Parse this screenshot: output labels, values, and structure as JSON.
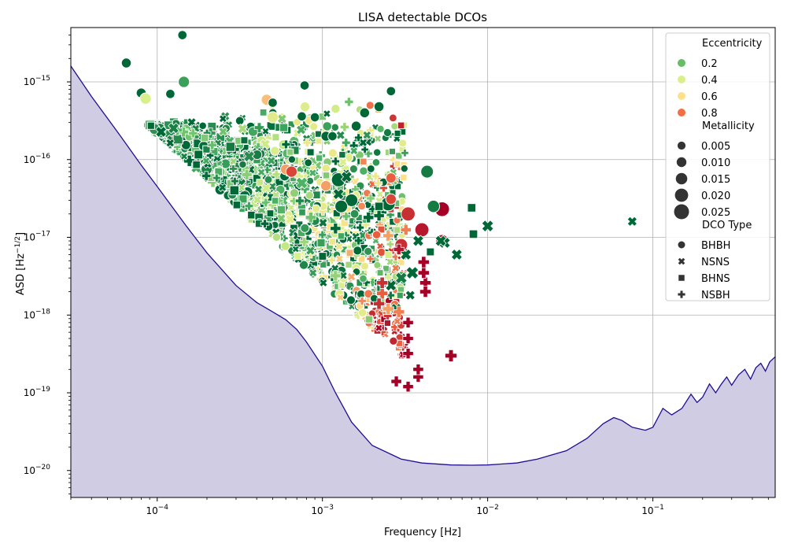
{
  "chart_data": {
    "type": "scatter",
    "title": "LISA detectable DCOs",
    "xlabel": "Frequency [Hz]",
    "ylabel_main": "ASD [Hz",
    "ylabel_exp": "−1/2",
    "ylabel_close": "]",
    "x_scale": "log",
    "y_scale": "log",
    "xlim": [
      3e-05,
      0.55
    ],
    "ylim": [
      4.5e-21,
      5e-15
    ],
    "grid": true,
    "legend_position": "top-right",
    "x_ticks": [
      {
        "value": 0.0001,
        "base": "10",
        "exp": "−4"
      },
      {
        "value": 0.001,
        "base": "10",
        "exp": "−3"
      },
      {
        "value": 0.01,
        "base": "10",
        "exp": "−2"
      },
      {
        "value": 0.1,
        "base": "10",
        "exp": "−1"
      }
    ],
    "y_ticks": [
      {
        "value": 1e-15,
        "base": "10",
        "exp": "−15"
      },
      {
        "value": 1e-16,
        "base": "10",
        "exp": "−16"
      },
      {
        "value": 1e-17,
        "base": "10",
        "exp": "−17"
      },
      {
        "value": 1e-18,
        "base": "10",
        "exp": "−18"
      },
      {
        "value": 1e-19,
        "base": "10",
        "exp": "−19"
      },
      {
        "value": 1e-20,
        "base": "10",
        "exp": "−20"
      }
    ],
    "sensitivity_curve": {
      "line_color": "#1f0f8f",
      "fill_color": "#cfcce3",
      "points": [
        [
          3e-05,
          1.6e-15
        ],
        [
          4e-05,
          6.5e-16
        ],
        [
          5e-05,
          3.4e-16
        ],
        [
          6e-05,
          2e-16
        ],
        [
          8e-05,
          8.5e-17
        ],
        [
          0.0001,
          4.5e-17
        ],
        [
          0.00015,
          1.4e-17
        ],
        [
          0.0002,
          6.3e-18
        ],
        [
          0.0003,
          2.4e-18
        ],
        [
          0.0004,
          1.45e-18
        ],
        [
          0.0005,
          1.1e-18
        ],
        [
          0.0006,
          8.7e-19
        ],
        [
          0.0007,
          6.5e-19
        ],
        [
          0.0008,
          4.5e-19
        ],
        [
          0.001,
          2.2e-19
        ],
        [
          0.0012,
          1e-19
        ],
        [
          0.0015,
          4.2e-20
        ],
        [
          0.002,
          2.1e-20
        ],
        [
          0.003,
          1.4e-20
        ],
        [
          0.004,
          1.25e-20
        ],
        [
          0.006,
          1.18e-20
        ],
        [
          0.008,
          1.17e-20
        ],
        [
          0.01,
          1.18e-20
        ],
        [
          0.015,
          1.25e-20
        ],
        [
          0.02,
          1.4e-20
        ],
        [
          0.03,
          1.8e-20
        ],
        [
          0.04,
          2.6e-20
        ],
        [
          0.05,
          4e-20
        ],
        [
          0.058,
          4.8e-20
        ],
        [
          0.065,
          4.4e-20
        ],
        [
          0.075,
          3.6e-20
        ],
        [
          0.09,
          3.3e-20
        ],
        [
          0.1,
          3.6e-20
        ],
        [
          0.115,
          6.3e-20
        ],
        [
          0.13,
          5.2e-20
        ],
        [
          0.15,
          6.3e-20
        ],
        [
          0.17,
          9.6e-20
        ],
        [
          0.185,
          7.5e-20
        ],
        [
          0.2,
          8.8e-20
        ],
        [
          0.22,
          1.3e-19
        ],
        [
          0.24,
          1e-19
        ],
        [
          0.26,
          1.3e-19
        ],
        [
          0.28,
          1.6e-19
        ],
        [
          0.3,
          1.25e-19
        ],
        [
          0.33,
          1.7e-19
        ],
        [
          0.36,
          2e-19
        ],
        [
          0.39,
          1.5e-19
        ],
        [
          0.42,
          2.1e-19
        ],
        [
          0.45,
          2.4e-19
        ],
        [
          0.48,
          1.9e-19
        ],
        [
          0.51,
          2.5e-19
        ],
        [
          0.55,
          2.9e-19
        ]
      ]
    },
    "eccentricity_palette": [
      {
        "stop": 0.0,
        "color": "#006837"
      },
      {
        "stop": 0.2,
        "color": "#4eb265"
      },
      {
        "stop": 0.4,
        "color": "#d9ef8b"
      },
      {
        "stop": 0.6,
        "color": "#fee08b"
      },
      {
        "stop": 0.8,
        "color": "#ea5d3e"
      },
      {
        "stop": 1.0,
        "color": "#a50026"
      }
    ],
    "legend": {
      "eccentricity_title": "Eccentricity",
      "eccentricity_items": [
        {
          "label": "0.2",
          "color": "#66bd63"
        },
        {
          "label": "0.4",
          "color": "#d9ef8b"
        },
        {
          "label": "0.6",
          "color": "#fee08b"
        },
        {
          "label": "0.8",
          "color": "#f46d43"
        }
      ],
      "metallicity_title": "Metallicity",
      "metallicity_items": [
        {
          "label": "0.005",
          "z": 0.005
        },
        {
          "label": "0.010",
          "z": 0.01
        },
        {
          "label": "0.015",
          "z": 0.015
        },
        {
          "label": "0.020",
          "z": 0.02
        },
        {
          "label": "0.025",
          "z": 0.025
        }
      ],
      "type_title": "DCO Type",
      "type_items": [
        {
          "label": "BHBH",
          "marker": "circle"
        },
        {
          "label": "NSNS",
          "marker": "x"
        },
        {
          "label": "BHNS",
          "marker": "square"
        },
        {
          "label": "NSBH",
          "marker": "plus"
        }
      ]
    },
    "points": [
      {
        "f": 0.000142,
        "asd": 4e-15,
        "ecc": 0.0,
        "z": 0.006,
        "type": "BHBH"
      },
      {
        "f": 6.5e-05,
        "asd": 1.75e-15,
        "ecc": 0.0,
        "z": 0.008,
        "type": "BHBH"
      },
      {
        "f": 0.000145,
        "asd": 1e-15,
        "ecc": 0.15,
        "z": 0.012,
        "type": "BHBH"
      },
      {
        "f": 0.00078,
        "asd": 9e-16,
        "ecc": 0.0,
        "z": 0.006,
        "type": "BHBH"
      },
      {
        "f": 8e-05,
        "asd": 7.2e-16,
        "ecc": 0.0,
        "z": 0.008,
        "type": "BHBH"
      },
      {
        "f": 8.5e-05,
        "asd": 6.1e-16,
        "ecc": 0.4,
        "z": 0.012,
        "type": "BHBH"
      },
      {
        "f": 0.00012,
        "asd": 7e-16,
        "ecc": 0.0,
        "z": 0.006,
        "type": "BHBH"
      },
      {
        "f": 0.0026,
        "asd": 7.6e-16,
        "ecc": 0.0,
        "z": 0.006,
        "type": "BHBH"
      },
      {
        "f": 0.00046,
        "asd": 5.9e-16,
        "ecc": 0.65,
        "z": 0.011,
        "type": "BHBH"
      },
      {
        "f": 0.0005,
        "asd": 5.4e-16,
        "ecc": 0.0,
        "z": 0.006,
        "type": "BHBH"
      },
      {
        "f": 0.0022,
        "asd": 4.8e-16,
        "ecc": 0.0,
        "z": 0.008,
        "type": "BHBH"
      },
      {
        "f": 0.0018,
        "asd": 4e-16,
        "ecc": 0.0,
        "z": 0.008,
        "type": "BHBH"
      },
      {
        "f": 0.0016,
        "asd": 2.7e-16,
        "ecc": 0.0,
        "z": 0.008,
        "type": "BHBH"
      },
      {
        "f": 0.00105,
        "asd": 2e-16,
        "ecc": 0.0,
        "z": 0.008,
        "type": "BHBH"
      },
      {
        "f": 0.00115,
        "asd": 2e-16,
        "ecc": 0.0,
        "z": 0.006,
        "type": "BHBH"
      },
      {
        "f": 0.0005,
        "asd": 3.5e-16,
        "ecc": 0.45,
        "z": 0.012,
        "type": "BHBH"
      },
      {
        "f": 0.0009,
        "asd": 3.5e-16,
        "ecc": 0.0,
        "z": 0.006,
        "type": "BHBH"
      },
      {
        "f": 0.00075,
        "asd": 3.6e-16,
        "ecc": 0.0,
        "z": 0.006,
        "type": "BHBH"
      },
      {
        "f": 0.0043,
        "asd": 7e-17,
        "ecc": 0.05,
        "z": 0.016,
        "type": "BHBH"
      },
      {
        "f": 0.0026,
        "asd": 5.8e-17,
        "ecc": 0.8,
        "z": 0.009,
        "type": "BHBH"
      },
      {
        "f": 0.0025,
        "asd": 2.7e-17,
        "ecc": 0.0,
        "z": 0.02,
        "type": "BHBH"
      },
      {
        "f": 0.0033,
        "asd": 2e-17,
        "ecc": 0.9,
        "z": 0.02,
        "type": "BHBH"
      },
      {
        "f": 0.0053,
        "asd": 2.3e-17,
        "ecc": 1.0,
        "z": 0.022,
        "type": "BHBH"
      },
      {
        "f": 0.0047,
        "asd": 2.5e-17,
        "ecc": 0.05,
        "z": 0.015,
        "type": "BHBH"
      },
      {
        "f": 0.004,
        "asd": 1.25e-17,
        "ecc": 0.95,
        "z": 0.02,
        "type": "BHBH"
      },
      {
        "f": 0.0026,
        "asd": 3.1e-17,
        "ecc": 0.85,
        "z": 0.01,
        "type": "BHBH"
      },
      {
        "f": 0.003,
        "asd": 8e-18,
        "ecc": 0.9,
        "z": 0.016,
        "type": "BHBH"
      },
      {
        "f": 0.0053,
        "asd": 9e-18,
        "ecc": 0.95,
        "z": 0.016,
        "type": "BHBH"
      },
      {
        "f": 0.0015,
        "asd": 3e-17,
        "ecc": 0.0,
        "z": 0.016,
        "type": "BHBH"
      },
      {
        "f": 0.0013,
        "asd": 2.5e-17,
        "ecc": 0.0,
        "z": 0.016,
        "type": "BHBH"
      },
      {
        "f": 0.00125,
        "asd": 5.5e-17,
        "ecc": 0.0,
        "z": 0.02,
        "type": "BHBH"
      },
      {
        "f": 0.00105,
        "asd": 4.6e-17,
        "ecc": 0.7,
        "z": 0.01,
        "type": "BHBH"
      },
      {
        "f": 0.0006,
        "asd": 7.5e-17,
        "ecc": 0.7,
        "z": 0.01,
        "type": "BHBH"
      },
      {
        "f": 0.00065,
        "asd": 7e-17,
        "ecc": 0.85,
        "z": 0.012,
        "type": "BHBH"
      },
      {
        "f": 0.075,
        "asd": 1.6e-17,
        "ecc": 0.0,
        "z": 0.008,
        "type": "NSNS"
      },
      {
        "f": 0.01,
        "asd": 1.4e-17,
        "ecc": 0.0,
        "z": 0.014,
        "type": "NSNS"
      },
      {
        "f": 0.0065,
        "asd": 6e-18,
        "ecc": 0.0,
        "z": 0.012,
        "type": "NSNS"
      },
      {
        "f": 0.0055,
        "asd": 8.5e-18,
        "ecc": 0.0,
        "z": 0.012,
        "type": "NSNS"
      },
      {
        "f": 0.0052,
        "asd": 9e-18,
        "ecc": 0.0,
        "z": 0.012,
        "type": "NSNS"
      },
      {
        "f": 0.0045,
        "asd": 6.5e-18,
        "ecc": 0.0,
        "z": 0.008,
        "type": "NSNS"
      },
      {
        "f": 0.0035,
        "asd": 3.5e-18,
        "ecc": 0.0,
        "z": 0.016,
        "type": "NSNS"
      },
      {
        "f": 0.0034,
        "asd": 1.8e-18,
        "ecc": 0.0,
        "z": 0.008,
        "type": "NSNS"
      },
      {
        "f": 0.003,
        "asd": 3e-18,
        "ecc": 0.05,
        "z": 0.014,
        "type": "NSNS"
      },
      {
        "f": 0.0028,
        "asd": 1.2e-18,
        "ecc": 0.0,
        "z": 0.012,
        "type": "NSNS"
      },
      {
        "f": 0.0026,
        "asd": 2.4e-18,
        "ecc": 0.0,
        "z": 0.012,
        "type": "NSNS"
      },
      {
        "f": 0.0038,
        "asd": 9e-18,
        "ecc": 0.0,
        "z": 0.012,
        "type": "NSNS"
      },
      {
        "f": 0.0032,
        "asd": 6e-18,
        "ecc": 0.0,
        "z": 0.012,
        "type": "NSNS"
      },
      {
        "f": 0.0014,
        "asd": 6e-17,
        "ecc": 0.0,
        "z": 0.012,
        "type": "NSNS"
      },
      {
        "f": 0.00125,
        "asd": 3.6e-17,
        "ecc": 0.0,
        "z": 0.012,
        "type": "NSNS"
      },
      {
        "f": 0.00036,
        "asd": 1.1e-16,
        "ecc": 0.1,
        "z": 0.012,
        "type": "NSNS"
      },
      {
        "f": 0.00075,
        "asd": 5e-17,
        "ecc": 0.2,
        "z": 0.014,
        "type": "NSNS"
      },
      {
        "f": 0.008,
        "asd": 2.4e-17,
        "ecc": 0.0,
        "z": 0.008,
        "type": "BHNS"
      },
      {
        "f": 0.0082,
        "asd": 1.1e-17,
        "ecc": 0.0,
        "z": 0.008,
        "type": "BHNS"
      },
      {
        "f": 0.0045,
        "asd": 6.5e-18,
        "ecc": 0.0,
        "z": 0.006,
        "type": "BHNS"
      },
      {
        "f": 0.0022,
        "asd": 2.5e-17,
        "ecc": 0.0,
        "z": 0.008,
        "type": "BHNS"
      },
      {
        "f": 0.006,
        "asd": 3e-19,
        "ecc": 1.0,
        "z": 0.014,
        "type": "NSBH"
      },
      {
        "f": 0.0033,
        "asd": 1.2e-19,
        "ecc": 1.0,
        "z": 0.01,
        "type": "NSBH"
      },
      {
        "f": 0.0038,
        "asd": 1.6e-19,
        "ecc": 1.0,
        "z": 0.01,
        "type": "NSBH"
      },
      {
        "f": 0.0038,
        "asd": 2e-19,
        "ecc": 1.0,
        "z": 0.01,
        "type": "NSBH"
      },
      {
        "f": 0.0042,
        "asd": 2.6e-18,
        "ecc": 1.0,
        "z": 0.012,
        "type": "NSBH"
      },
      {
        "f": 0.0042,
        "asd": 2e-18,
        "ecc": 1.0,
        "z": 0.012,
        "type": "NSBH"
      },
      {
        "f": 0.0041,
        "asd": 3.5e-18,
        "ecc": 1.0,
        "z": 0.012,
        "type": "NSBH"
      },
      {
        "f": 0.0041,
        "asd": 4.8e-18,
        "ecc": 1.0,
        "z": 0.012,
        "type": "NSBH"
      },
      {
        "f": 0.0033,
        "asd": 8e-19,
        "ecc": 1.0,
        "z": 0.01,
        "type": "NSBH"
      },
      {
        "f": 0.0033,
        "asd": 5e-19,
        "ecc": 1.0,
        "z": 0.01,
        "type": "NSBH"
      },
      {
        "f": 0.0033,
        "asd": 3.2e-19,
        "ecc": 1.0,
        "z": 0.01,
        "type": "NSBH"
      },
      {
        "f": 0.0028,
        "asd": 1.4e-19,
        "ecc": 1.0,
        "z": 0.01,
        "type": "NSBH"
      },
      {
        "f": 0.0029,
        "asd": 1.1e-18,
        "ecc": 0.75,
        "z": 0.012,
        "type": "NSBH"
      },
      {
        "f": 0.0025,
        "asd": 1.2e-18,
        "ecc": 0.7,
        "z": 0.012,
        "type": "NSBH"
      },
      {
        "f": 0.0023,
        "asd": 1.9e-18,
        "ecc": 0.8,
        "z": 0.012,
        "type": "NSBH"
      },
      {
        "f": 0.0022,
        "asd": 1.4e-18,
        "ecc": 0.9,
        "z": 0.012,
        "type": "NSBH"
      },
      {
        "f": 0.0023,
        "asd": 2.6e-18,
        "ecc": 0.9,
        "z": 0.012,
        "type": "NSBH"
      },
      {
        "f": 0.0032,
        "asd": 1.25e-17,
        "ecc": 0.75,
        "z": 0.01,
        "type": "NSBH"
      },
      {
        "f": 0.0025,
        "asd": 1.05e-17,
        "ecc": 0.7,
        "z": 0.01,
        "type": "NSBH"
      },
      {
        "f": 0.0029,
        "asd": 7e-18,
        "ecc": 0.95,
        "z": 0.01,
        "type": "NSBH"
      },
      {
        "f": 0.0022,
        "asd": 1.9e-17,
        "ecc": 0.0,
        "z": 0.01,
        "type": "NSBH"
      },
      {
        "f": 0.0019,
        "asd": 1.8e-17,
        "ecc": 0.0,
        "z": 0.01,
        "type": "NSBH"
      },
      {
        "f": 0.0012,
        "asd": 1.3e-17,
        "ecc": 0.0,
        "z": 0.01,
        "type": "NSBH"
      },
      {
        "f": 0.00085,
        "asd": 1.8e-17,
        "ecc": 0.25,
        "z": 0.01,
        "type": "NSBH"
      },
      {
        "f": 0.0012,
        "asd": 3.2e-18,
        "ecc": 0.3,
        "z": 0.01,
        "type": "NSBH"
      }
    ]
  }
}
